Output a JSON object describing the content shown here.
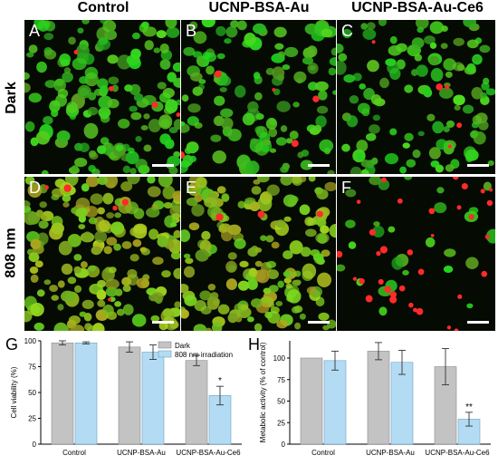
{
  "figure": {
    "column_titles": [
      "Control",
      "UCNP-BSA-Au",
      "UCNP-BSA-Au-Ce6"
    ],
    "row_titles": [
      "Dark",
      "808 nm"
    ],
    "panel_letters": [
      "A",
      "B",
      "C",
      "D",
      "E",
      "F"
    ],
    "chart_letters": [
      "G",
      "H"
    ]
  },
  "colors": {
    "live_cell_green": "#3fc72b",
    "dead_cell_red": "#ff2a2a",
    "dark_bar": "#c3c3c3",
    "irradiation_bar": "#b3dcf4"
  },
  "chart_data": [
    {
      "type": "bar",
      "categories": [
        "Control",
        "UCNP-BSA-Au",
        "UCNP-BSA-Au-Ce6"
      ],
      "ylabel": "Cell viability (%)",
      "xlabel": "",
      "ylim": [
        0,
        100
      ],
      "yticks": [
        0,
        25,
        50,
        75,
        100
      ],
      "legend": "top-center",
      "series": [
        {
          "name": "Dark",
          "values": [
            98,
            94,
            81
          ],
          "errors": [
            2,
            5,
            5
          ]
        },
        {
          "name": "808 nm irradiation",
          "values": [
            98,
            89,
            47
          ],
          "errors": [
            1,
            7,
            9
          ]
        }
      ],
      "annotations": [
        {
          "category": "UCNP-BSA-Au-Ce6",
          "series": "808 nm irradiation",
          "text": "*"
        }
      ]
    },
    {
      "type": "bar",
      "categories": [
        "Control",
        "UCNP-BSA-Au",
        "UCNP-BSA-Au-Ce6"
      ],
      "ylabel": "Metabolic activity (% of control)",
      "xlabel": "",
      "ylim": [
        0,
        120
      ],
      "yticks": [
        0,
        25,
        50,
        75,
        100
      ],
      "series": [
        {
          "name": "Dark",
          "values": [
            100,
            108,
            90
          ],
          "errors": [
            0,
            10,
            21
          ]
        },
        {
          "name": "808 nm irradiation",
          "values": [
            97,
            95,
            29
          ],
          "errors": [
            11,
            14,
            8
          ]
        }
      ],
      "annotations": [
        {
          "category": "UCNP-BSA-Au-Ce6",
          "series": "808 nm irradiation",
          "text": "**"
        }
      ]
    }
  ]
}
